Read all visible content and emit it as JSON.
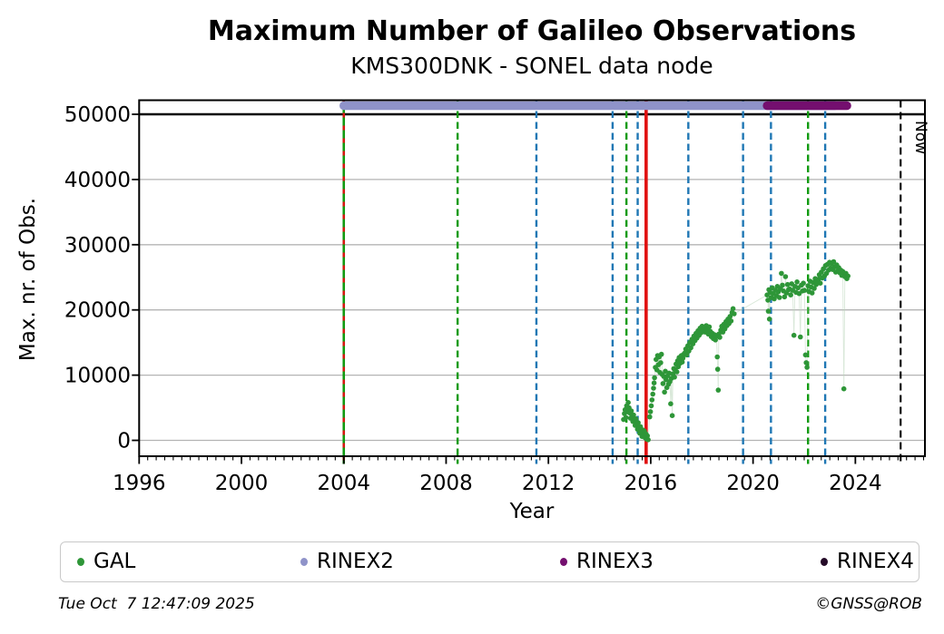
{
  "title": "Maximum Number of Galileo Observations",
  "subtitle": "KMS300DNK - SONEL data node",
  "footer": {
    "timestamp": "Tue Oct  7 12:47:09 2025",
    "credit": "©GNSS@ROB"
  },
  "colors": {
    "green_line": "#119a11",
    "blue_line": "#1f77b4",
    "red_line": "#e01010",
    "black": "#000000",
    "grid": "#b4b4b4",
    "gal_marker": "#2e9638",
    "connector": "#b9d6b9",
    "rinex2": "#8f93c9",
    "rinex3": "#740f6f",
    "rinex4": "#250a28"
  },
  "chart_data": {
    "type": "scatter",
    "title": "Maximum Number of Galileo Observations",
    "subtitle": "KMS300DNK - SONEL data node",
    "xlabel": "Year",
    "ylabel": "Max. nr. of Obs.",
    "xlim": [
      1996,
      2026.72
    ],
    "ylim": [
      -2450,
      52350
    ],
    "xticks": [
      1996,
      2000,
      2004,
      2008,
      2012,
      2016,
      2020,
      2024
    ],
    "x_minor_tick_step_years": 0.3333,
    "yticks": [
      0,
      10000,
      20000,
      30000,
      40000,
      50000
    ],
    "grid": "horizontal",
    "max_obs_line": 50000,
    "now": {
      "label": "Now",
      "year": 2025.77
    },
    "legend": {
      "position": "bottom",
      "entries": [
        {
          "label": "GAL",
          "color": "#2e9638"
        },
        {
          "label": "RINEX2",
          "color": "#8f93c9"
        },
        {
          "label": "RINEX3",
          "color": "#740f6f"
        },
        {
          "label": "RINEX4",
          "color": "#250a28"
        }
      ]
    },
    "availability_bars": [
      {
        "name": "RINEX2",
        "start": 2004.0,
        "end": 2023.2,
        "value": 51300,
        "color": "#8f93c9"
      },
      {
        "name": "RINEX3",
        "start": 2020.55,
        "end": 2023.67,
        "value": 51300,
        "color": "#740f6f"
      }
    ],
    "event_lines": [
      {
        "year": 2004.0,
        "color": "#119a11",
        "style": "solid",
        "width": 2.6
      },
      {
        "year": 2004.0,
        "color": "#e01010",
        "style": "dashed-sparse",
        "width": 2.4
      },
      {
        "year": 2008.45,
        "color": "#119a11",
        "style": "dashed",
        "width": 2.4
      },
      {
        "year": 2011.53,
        "color": "#1f77b4",
        "style": "dashed",
        "width": 2.4
      },
      {
        "year": 2014.51,
        "color": "#1f77b4",
        "style": "dashed",
        "width": 2.4
      },
      {
        "year": 2015.05,
        "color": "#119a11",
        "style": "dashed",
        "width": 2.4
      },
      {
        "year": 2015.49,
        "color": "#1f77b4",
        "style": "dashed",
        "width": 2.4
      },
      {
        "year": 2015.82,
        "color": "#e01010",
        "style": "solid",
        "width": 3.6
      },
      {
        "year": 2017.47,
        "color": "#1f77b4",
        "style": "dashed",
        "width": 2.4
      },
      {
        "year": 2019.61,
        "color": "#1f77b4",
        "style": "dashed",
        "width": 2.4
      },
      {
        "year": 2020.7,
        "color": "#1f77b4",
        "style": "dashed",
        "width": 2.4
      },
      {
        "year": 2022.15,
        "color": "#119a11",
        "style": "dashed",
        "width": 2.4
      },
      {
        "year": 2022.82,
        "color": "#1f77b4",
        "style": "dashed",
        "width": 2.4
      }
    ],
    "series": [
      {
        "name": "GAL",
        "color": "#2e9638",
        "marker_radius": 2.8,
        "points": [
          [
            2014.94,
            3200
          ],
          [
            2014.97,
            4100
          ],
          [
            2015.0,
            4700
          ],
          [
            2015.03,
            3500
          ],
          [
            2015.06,
            5300
          ],
          [
            2015.09,
            4400
          ],
          [
            2015.12,
            5800
          ],
          [
            2015.15,
            5000
          ],
          [
            2015.18,
            4200
          ],
          [
            2015.21,
            3400
          ],
          [
            2015.24,
            4500
          ],
          [
            2015.27,
            3700
          ],
          [
            2015.3,
            2900
          ],
          [
            2015.33,
            3900
          ],
          [
            2015.36,
            3100
          ],
          [
            2015.39,
            2300
          ],
          [
            2015.42,
            3300
          ],
          [
            2015.45,
            2500
          ],
          [
            2015.48,
            1700
          ],
          [
            2015.51,
            2700
          ],
          [
            2015.54,
            1900
          ],
          [
            2015.57,
            1100
          ],
          [
            2015.6,
            2100
          ],
          [
            2015.63,
            1300
          ],
          [
            2015.66,
            600
          ],
          [
            2015.69,
            1600
          ],
          [
            2015.72,
            800
          ],
          [
            2015.75,
            1400
          ],
          [
            2015.78,
            400
          ],
          [
            2015.81,
            1000
          ],
          [
            2015.84,
            200
          ],
          [
            2015.87,
            700
          ],
          [
            2015.9,
            100
          ],
          [
            2015.96,
            3600
          ],
          [
            2015.99,
            4400
          ],
          [
            2016.02,
            5300
          ],
          [
            2016.05,
            6200
          ],
          [
            2016.08,
            7100
          ],
          [
            2016.11,
            8000
          ],
          [
            2016.13,
            8800
          ],
          [
            2016.15,
            9600
          ],
          [
            2016.18,
            11200
          ],
          [
            2016.21,
            12400
          ],
          [
            2016.24,
            10800
          ],
          [
            2016.27,
            13000
          ],
          [
            2016.3,
            11600
          ],
          [
            2016.33,
            12800
          ],
          [
            2016.36,
            10400
          ],
          [
            2016.39,
            11900
          ],
          [
            2016.42,
            13200
          ],
          [
            2016.45,
            10100
          ],
          [
            2016.48,
            8700
          ],
          [
            2016.51,
            9800
          ],
          [
            2016.54,
            7400
          ],
          [
            2016.57,
            10600
          ],
          [
            2016.6,
            9300
          ],
          [
            2016.63,
            8100
          ],
          [
            2016.66,
            9900
          ],
          [
            2016.69,
            8600
          ],
          [
            2016.72,
            10300
          ],
          [
            2016.75,
            9000
          ],
          [
            2016.78,
            5600
          ],
          [
            2016.81,
            9500
          ],
          [
            2016.84,
            3800
          ],
          [
            2016.87,
            10200
          ],
          [
            2016.9,
            11000
          ],
          [
            2016.93,
            9700
          ],
          [
            2016.96,
            10800
          ],
          [
            2016.99,
            11700
          ],
          [
            2017.02,
            10500
          ],
          [
            2017.05,
            12200
          ],
          [
            2017.08,
            11300
          ],
          [
            2017.11,
            12700
          ],
          [
            2017.14,
            11800
          ],
          [
            2017.17,
            12300
          ],
          [
            2017.2,
            13000
          ],
          [
            2017.23,
            12000
          ],
          [
            2017.26,
            12600
          ],
          [
            2017.29,
            13200
          ],
          [
            2017.33,
            13400
          ],
          [
            2017.37,
            14000
          ],
          [
            2017.41,
            13100
          ],
          [
            2017.45,
            14500
          ],
          [
            2017.49,
            13700
          ],
          [
            2017.53,
            15000
          ],
          [
            2017.57,
            14200
          ],
          [
            2017.61,
            15500
          ],
          [
            2017.65,
            14800
          ],
          [
            2017.69,
            16000
          ],
          [
            2017.73,
            15300
          ],
          [
            2017.77,
            16400
          ],
          [
            2017.81,
            15700
          ],
          [
            2017.85,
            16800
          ],
          [
            2017.89,
            16100
          ],
          [
            2017.93,
            17200
          ],
          [
            2017.97,
            16500
          ],
          [
            2018.01,
            17500
          ],
          [
            2018.05,
            16900
          ],
          [
            2018.09,
            17300
          ],
          [
            2018.13,
            16600
          ],
          [
            2018.17,
            17600
          ],
          [
            2018.21,
            17000
          ],
          [
            2018.25,
            16300
          ],
          [
            2018.29,
            17400
          ],
          [
            2018.33,
            16700
          ],
          [
            2018.37,
            15900
          ],
          [
            2018.41,
            16400
          ],
          [
            2018.45,
            15600
          ],
          [
            2018.49,
            16200
          ],
          [
            2018.53,
            15400
          ],
          [
            2018.57,
            16000
          ],
          [
            2018.6,
            12800
          ],
          [
            2018.62,
            10900
          ],
          [
            2018.64,
            7700
          ],
          [
            2018.66,
            16300
          ],
          [
            2018.7,
            15800
          ],
          [
            2018.74,
            16900
          ],
          [
            2018.78,
            17500
          ],
          [
            2018.82,
            16600
          ],
          [
            2018.86,
            17800
          ],
          [
            2018.9,
            17100
          ],
          [
            2018.94,
            18200
          ],
          [
            2018.98,
            17600
          ],
          [
            2019.02,
            18600
          ],
          [
            2019.06,
            17900
          ],
          [
            2019.1,
            19000
          ],
          [
            2019.14,
            18300
          ],
          [
            2019.18,
            19600
          ],
          [
            2019.22,
            20200
          ],
          [
            2019.26,
            19400
          ],
          [
            2020.55,
            22300
          ],
          [
            2020.58,
            21500
          ],
          [
            2020.6,
            19800
          ],
          [
            2020.62,
            23100
          ],
          [
            2020.64,
            18600
          ],
          [
            2020.67,
            22700
          ],
          [
            2020.71,
            21900
          ],
          [
            2020.75,
            23400
          ],
          [
            2020.79,
            22500
          ],
          [
            2020.83,
            21700
          ],
          [
            2020.87,
            23000
          ],
          [
            2020.91,
            22200
          ],
          [
            2020.95,
            23600
          ],
          [
            2020.99,
            22800
          ],
          [
            2021.03,
            21900
          ],
          [
            2021.07,
            23300
          ],
          [
            2021.11,
            25600
          ],
          [
            2021.15,
            23800
          ],
          [
            2021.19,
            22900
          ],
          [
            2021.23,
            22000
          ],
          [
            2021.27,
            25100
          ],
          [
            2021.31,
            22600
          ],
          [
            2021.35,
            23900
          ],
          [
            2021.39,
            23100
          ],
          [
            2021.43,
            23200
          ],
          [
            2021.47,
            22300
          ],
          [
            2021.51,
            24000
          ],
          [
            2021.55,
            23000
          ],
          [
            2021.6,
            16100
          ],
          [
            2021.64,
            23600
          ],
          [
            2021.68,
            22700
          ],
          [
            2021.72,
            24300
          ],
          [
            2021.76,
            23400
          ],
          [
            2021.8,
            22500
          ],
          [
            2021.85,
            15850
          ],
          [
            2021.89,
            23800
          ],
          [
            2021.93,
            22900
          ],
          [
            2021.97,
            24100
          ],
          [
            2022.01,
            23000
          ],
          [
            2022.05,
            13100
          ],
          [
            2022.08,
            11900
          ],
          [
            2022.11,
            11200
          ],
          [
            2022.15,
            23700
          ],
          [
            2022.19,
            22800
          ],
          [
            2022.23,
            24400
          ],
          [
            2022.27,
            23500
          ],
          [
            2022.31,
            22600
          ],
          [
            2022.35,
            24200
          ],
          [
            2022.39,
            23300
          ],
          [
            2022.43,
            24800
          ],
          [
            2022.47,
            23900
          ],
          [
            2022.51,
            24500
          ],
          [
            2022.55,
            24700
          ],
          [
            2022.59,
            25400
          ],
          [
            2022.63,
            24100
          ],
          [
            2022.67,
            25800
          ],
          [
            2022.71,
            24900
          ],
          [
            2022.75,
            26300
          ],
          [
            2022.79,
            25200
          ],
          [
            2022.83,
            26800
          ],
          [
            2022.87,
            25600
          ],
          [
            2022.91,
            27000
          ],
          [
            2022.95,
            26100
          ],
          [
            2022.99,
            27300
          ],
          [
            2023.03,
            26400
          ],
          [
            2023.07,
            27100
          ],
          [
            2023.11,
            26200
          ],
          [
            2023.15,
            27400
          ],
          [
            2023.19,
            26600
          ],
          [
            2023.23,
            25800
          ],
          [
            2023.27,
            26900
          ],
          [
            2023.31,
            26000
          ],
          [
            2023.35,
            26500
          ],
          [
            2023.39,
            25700
          ],
          [
            2023.43,
            26100
          ],
          [
            2023.47,
            25300
          ],
          [
            2023.51,
            25900
          ],
          [
            2023.55,
            7900
          ],
          [
            2023.59,
            25100
          ],
          [
            2023.63,
            25600
          ],
          [
            2023.67,
            24800
          ],
          [
            2023.71,
            25200
          ]
        ]
      }
    ]
  }
}
